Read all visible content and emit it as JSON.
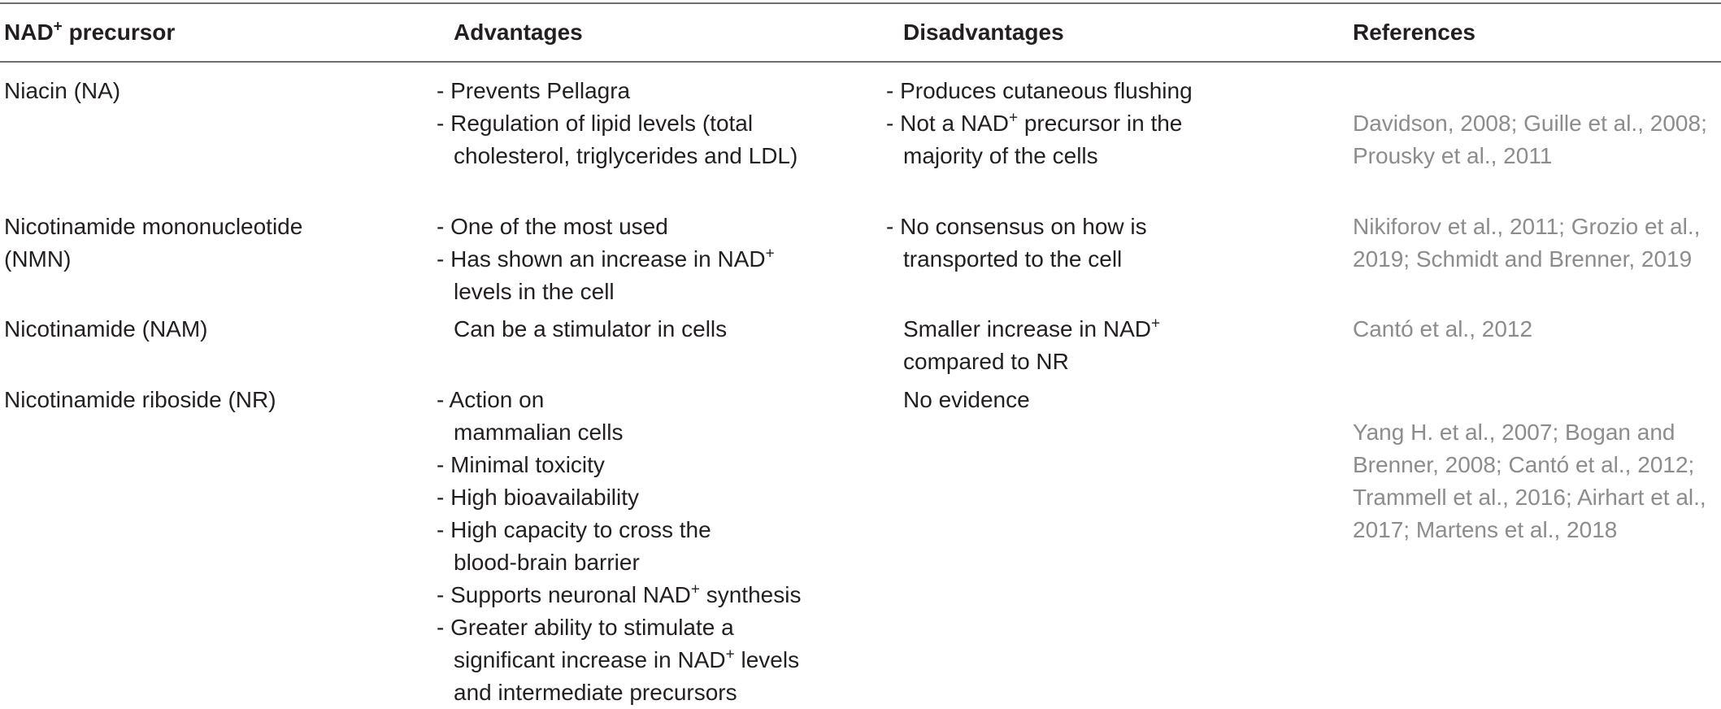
{
  "header": {
    "col1_main": "NAD",
    "col1_sup": "+",
    "col1_tail": " precursor",
    "col2": "Advantages",
    "col3": "Disadvantages",
    "col4": "References"
  },
  "rows": [
    {
      "name": "Niacin (NA)",
      "adv": [
        "- Prevents Pellagra",
        "- Regulation of lipid levels (total",
        "cholesterol, triglycerides and LDL)"
      ],
      "dis1": "- Produces cutaneous flushing",
      "dis2_pre": "- Not a NAD",
      "dis2_sup": "+",
      "dis2_post": " precursor in the",
      "dis3": "majority of the cells",
      "ref1_a": "Davidson, 2008",
      "ref1_b": "Guille et al., 2008",
      "ref2": "Prousky et al., 2011"
    },
    {
      "name1": "Nicotinamide mononucleotide",
      "name2": "(NMN)",
      "adv1": "- One of the most used",
      "adv2_pre": "- Has shown an increase in NAD",
      "adv2_sup": "+",
      "adv3": "levels in the cell",
      "dis1": "- No consensus on how is",
      "dis2": "transported to the cell",
      "ref1_a": "Nikiforov et al., 2011",
      "ref1_b": "Grozio et al.,",
      "ref2_a": "2019",
      "ref2_b": "Schmidt and Brenner, 2019"
    },
    {
      "name": "Nicotinamide (NAM)",
      "adv": "Can be a stimulator in cells",
      "dis1_pre": "Smaller increase in NAD",
      "dis1_sup": "+",
      "dis2": "compared to NR",
      "ref": "Cantó et al., 2012"
    },
    {
      "name": "Nicotinamide riboside (NR)",
      "adv": [
        "- Action on",
        "mammalian cells",
        "- Minimal toxicity",
        "- High bioavailability",
        "- High capacity to cross the",
        "blood-brain barrier"
      ],
      "adv7_pre": "- Supports neuronal NAD",
      "adv7_sup": "+",
      "adv7_post": " synthesis",
      "adv8": "- Greater ability to stimulate a",
      "adv9_pre": "significant increase in NAD",
      "adv9_sup": "+",
      "adv9_post": " levels",
      "adv10": "and intermediate precursors",
      "dis": "No evidence",
      "refs": [
        "Yang H. et al., 2007",
        "Bogan and",
        "Brenner, 2008",
        "Cantó et al., 2012",
        "Trammell et al., 2016",
        "Airhart et al.,",
        "2017",
        "Martens et al., 2018"
      ]
    }
  ],
  "separator": "; "
}
